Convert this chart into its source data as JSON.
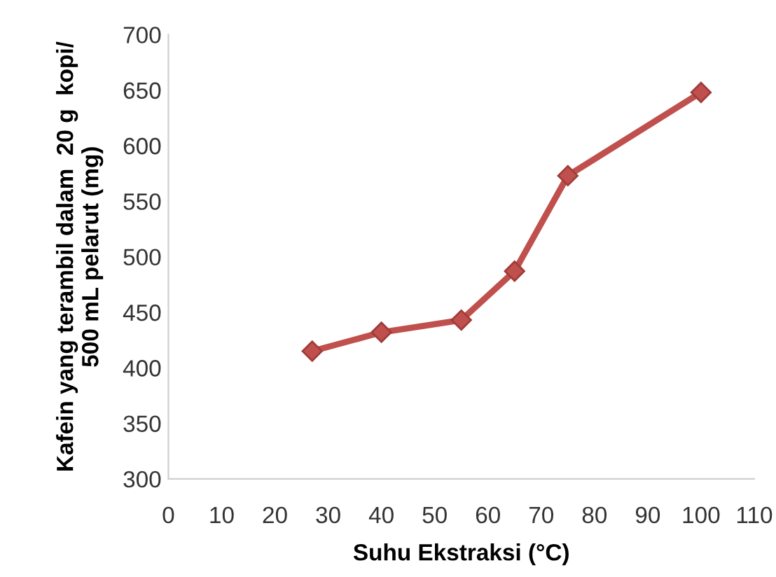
{
  "chart_data": {
    "type": "line",
    "xlabel": "Suhu Ekstraksi (°C)",
    "ylabel": "Kafein yang terambil dalam  20 g  kopi/\n500 mL pelarut (mg)",
    "series": [
      {
        "x": [
          27,
          40,
          55,
          65,
          75,
          100
        ],
        "values": [
          415,
          432,
          443,
          487,
          573,
          648
        ],
        "color": "#c0504d"
      }
    ],
    "xlim": [
      0,
      110
    ],
    "xticks": [
      0,
      10,
      20,
      30,
      40,
      50,
      60,
      70,
      80,
      90,
      100,
      110
    ],
    "ylim": [
      300,
      700
    ],
    "yticks": [
      300,
      350,
      400,
      450,
      500,
      550,
      600,
      650,
      700
    ],
    "marker": "diamond",
    "line_style": "solid",
    "grid": false,
    "legend": false
  }
}
